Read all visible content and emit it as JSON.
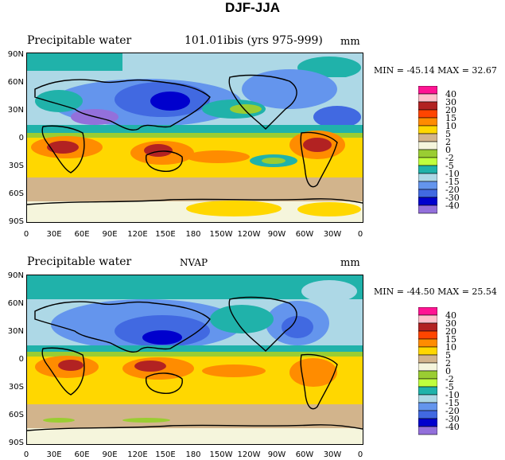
{
  "title": "DJF-JJA",
  "units": "mm",
  "lat_labels": [
    "90N",
    "60N",
    "30N",
    "0",
    "30S",
    "60S",
    "90S"
  ],
  "lon_labels": [
    "0",
    "30E",
    "60E",
    "90E",
    "120E",
    "150E",
    "180",
    "150W",
    "120W",
    "90W",
    "60W",
    "30W",
    "0"
  ],
  "legend_levels": [
    "40",
    "30",
    "20",
    "15",
    "10",
    "5",
    "2",
    "0",
    "-2",
    "-5",
    "-10",
    "-15",
    "-20",
    "-30",
    "-40"
  ],
  "legend_colors": [
    "#ff1493",
    "#ffc0cb",
    "#b22222",
    "#ff4500",
    "#ff8c00",
    "#ffd700",
    "#d2b48c",
    "#f5f5dc",
    "#9acd32",
    "#c0ff3e",
    "#20b2aa",
    "#add8e6",
    "#6495ed",
    "#4169e1",
    "#0000cd",
    "#9370db"
  ],
  "panels": [
    {
      "title": "Precipitable water",
      "subtitle": "101.01ibis (yrs 975-999)",
      "units": "mm",
      "min_label": "MIN = ",
      "min_value": "-45.14",
      "max_label": "MAX = ",
      "max_value": "32.67"
    },
    {
      "title": "Precipitable water",
      "subtitle": "NVAP",
      "units": "mm",
      "min_label": "MIN = ",
      "min_value": "-44.50",
      "max_label": "MAX = ",
      "max_value": "25.54"
    }
  ]
}
